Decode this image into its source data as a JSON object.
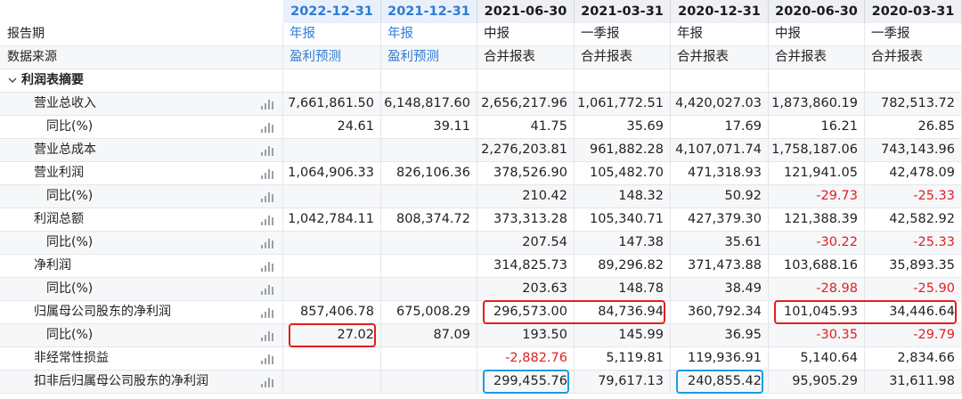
{
  "header": {
    "columns": [
      {
        "period": "2022-12-31",
        "forecast": true
      },
      {
        "period": "2021-12-31",
        "forecast": true
      },
      {
        "period": "2021-06-30",
        "forecast": false
      },
      {
        "period": "2021-03-31",
        "forecast": false
      },
      {
        "period": "2020-12-31",
        "forecast": false
      },
      {
        "period": "2020-06-30",
        "forecast": false
      },
      {
        "period": "2020-03-31",
        "forecast": false
      }
    ]
  },
  "rows": [
    {
      "label": "报告期",
      "kind": "top",
      "chart": false,
      "cells": [
        "年报",
        "年报",
        "中报",
        "一季报",
        "年报",
        "中报",
        "一季报"
      ],
      "blue": [
        true,
        true,
        false,
        false,
        false,
        false,
        false
      ]
    },
    {
      "label": "数据来源",
      "kind": "top",
      "chart": false,
      "cells": [
        "盈利预测",
        "盈利预测",
        "合并报表",
        "合并报表",
        "合并报表",
        "合并报表",
        "合并报表"
      ],
      "blue": [
        true,
        true,
        false,
        false,
        false,
        false,
        false
      ]
    },
    {
      "label": "利润表摘要",
      "kind": "section",
      "chart": false,
      "cells": [
        "",
        "",
        "",
        "",
        "",
        "",
        ""
      ]
    },
    {
      "label": "营业总收入",
      "kind": "item",
      "chart": true,
      "cells": [
        "7,661,861.50",
        "6,148,817.60",
        "2,656,217.96",
        "1,061,772.51",
        "4,420,027.03",
        "1,873,860.19",
        "782,513.72"
      ]
    },
    {
      "label": "同比(%)",
      "kind": "sub",
      "chart": true,
      "cells": [
        "24.61",
        "39.11",
        "41.75",
        "35.69",
        "17.69",
        "16.21",
        "26.85"
      ]
    },
    {
      "label": "营业总成本",
      "kind": "item",
      "chart": true,
      "cells": [
        "",
        "",
        "2,276,203.81",
        "961,882.28",
        "4,107,071.74",
        "1,758,187.06",
        "743,143.96"
      ]
    },
    {
      "label": "营业利润",
      "kind": "item",
      "chart": true,
      "cells": [
        "1,064,906.33",
        "826,106.36",
        "378,526.90",
        "105,482.70",
        "471,318.93",
        "121,941.05",
        "42,478.09"
      ]
    },
    {
      "label": "同比(%)",
      "kind": "sub",
      "chart": true,
      "cells": [
        "",
        "",
        "210.42",
        "148.32",
        "50.92",
        "-29.73",
        "-25.33"
      ]
    },
    {
      "label": "利润总额",
      "kind": "item",
      "chart": true,
      "cells": [
        "1,042,784.11",
        "808,374.72",
        "373,313.28",
        "105,340.71",
        "427,379.30",
        "121,388.39",
        "42,582.92"
      ]
    },
    {
      "label": "同比(%)",
      "kind": "sub",
      "chart": true,
      "cells": [
        "",
        "",
        "207.54",
        "147.38",
        "35.61",
        "-30.22",
        "-25.33"
      ]
    },
    {
      "label": "净利润",
      "kind": "item",
      "chart": true,
      "cells": [
        "",
        "",
        "314,825.73",
        "89,296.82",
        "371,473.88",
        "103,688.16",
        "35,893.35"
      ]
    },
    {
      "label": "同比(%)",
      "kind": "sub",
      "chart": true,
      "cells": [
        "",
        "",
        "203.63",
        "148.78",
        "38.49",
        "-28.98",
        "-25.90"
      ]
    },
    {
      "label": "归属母公司股东的净利润",
      "kind": "item",
      "chart": true,
      "cells": [
        "857,406.78",
        "675,008.29",
        "296,573.00",
        "84,736.94",
        "360,792.34",
        "101,045.93",
        "34,446.64"
      ]
    },
    {
      "label": "同比(%)",
      "kind": "sub",
      "chart": true,
      "cells": [
        "27.02",
        "87.09",
        "193.50",
        "145.99",
        "36.95",
        "-30.35",
        "-29.79"
      ]
    },
    {
      "label": "非经常性损益",
      "kind": "item",
      "chart": true,
      "cells": [
        "",
        "",
        "-2,882.76",
        "5,119.81",
        "119,936.91",
        "5,140.64",
        "2,834.66"
      ]
    },
    {
      "label": "扣非后归属母公司股东的净利润",
      "kind": "item",
      "chart": true,
      "cells": [
        "",
        "",
        "299,455.76",
        "79,617.13",
        "240,855.42",
        "95,905.29",
        "31,611.98"
      ]
    }
  ],
  "highlights": [
    {
      "color": "red",
      "row": 12,
      "col_from": 2,
      "col_to": 3
    },
    {
      "color": "red",
      "row": 12,
      "col_from": 5,
      "col_to": 6
    },
    {
      "color": "red",
      "row": 13,
      "col_from": 0,
      "col_to": 0
    },
    {
      "color": "cyan",
      "row": 15,
      "col_from": 2,
      "col_to": 2
    },
    {
      "color": "cyan",
      "row": 15,
      "col_from": 4,
      "col_to": 4
    }
  ],
  "colors": {
    "forecast": "#2e7bd6",
    "negative": "#e02020",
    "highlight_red": "#e41d1d",
    "highlight_cyan": "#1b9be8"
  },
  "icons": {
    "row_chart": "bar-chart-icon",
    "section_toggle": "chevron-down-icon"
  }
}
